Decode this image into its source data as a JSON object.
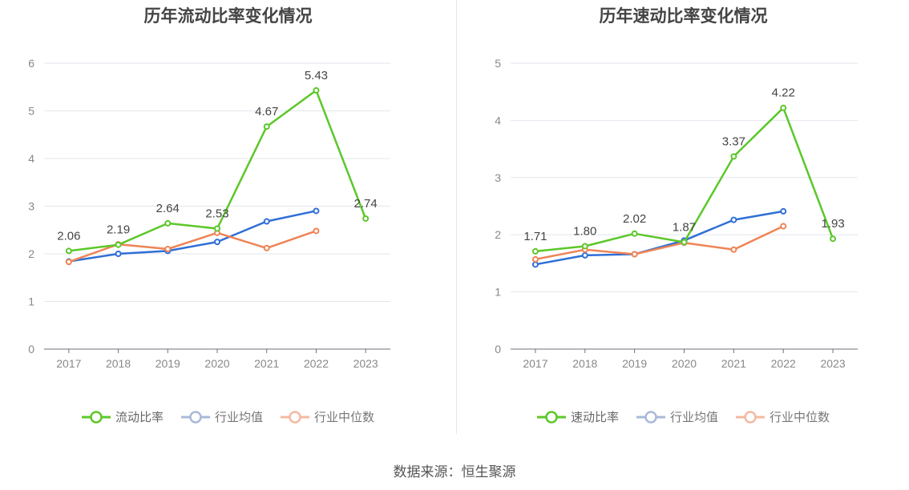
{
  "source": "数据来源：恒生聚源",
  "legend_inactive_color": "#a9b9d9",
  "chart_data": [
    {
      "type": "line",
      "title": "历年流动比率变化情况",
      "xlabel": "",
      "ylabel": "",
      "x": [
        "2017",
        "2018",
        "2019",
        "2020",
        "2021",
        "2022",
        "2023"
      ],
      "ylim": [
        0,
        6
      ],
      "yticks": [
        0,
        1,
        2,
        3,
        4,
        5,
        6
      ],
      "grid": true,
      "legend_position": "bottom-center",
      "series": [
        {
          "name": "流动比率",
          "color": "#5cc72a",
          "values": [
            2.06,
            2.19,
            2.64,
            2.53,
            4.67,
            5.43,
            2.74
          ],
          "labels": [
            "2.06",
            "2.19",
            "2.64",
            "2.53",
            "4.67",
            "5.43",
            "2.74"
          ],
          "active": true
        },
        {
          "name": "行业均值",
          "color": "#2f6fd6",
          "values": [
            1.84,
            2.0,
            2.06,
            2.25,
            2.68,
            2.9,
            null
          ],
          "active": false
        },
        {
          "name": "行业中位数",
          "color": "#ee8456",
          "values": [
            1.83,
            2.2,
            2.1,
            2.44,
            2.12,
            2.48,
            null
          ],
          "active": false
        }
      ]
    },
    {
      "type": "line",
      "title": "历年速动比率变化情况",
      "xlabel": "",
      "ylabel": "",
      "x": [
        "2017",
        "2018",
        "2019",
        "2020",
        "2021",
        "2022",
        "2023"
      ],
      "ylim": [
        0,
        5
      ],
      "yticks": [
        0,
        1,
        2,
        3,
        4,
        5
      ],
      "grid": true,
      "legend_position": "bottom-center",
      "series": [
        {
          "name": "速动比率",
          "color": "#5cc72a",
          "values": [
            1.71,
            1.8,
            2.02,
            1.87,
            3.37,
            4.22,
            1.93
          ],
          "labels": [
            "1.71",
            "1.80",
            "2.02",
            "1.87",
            "3.37",
            "4.22",
            "1.93"
          ],
          "active": true
        },
        {
          "name": "行业均值",
          "color": "#2f6fd6",
          "values": [
            1.48,
            1.64,
            1.66,
            1.9,
            2.26,
            2.41,
            null
          ],
          "active": false
        },
        {
          "name": "行业中位数",
          "color": "#ee8456",
          "values": [
            1.57,
            1.74,
            1.66,
            1.86,
            1.74,
            2.15,
            null
          ],
          "active": false
        }
      ]
    }
  ]
}
